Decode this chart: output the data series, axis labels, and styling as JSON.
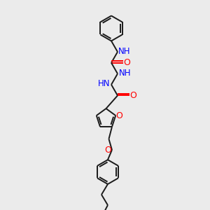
{
  "bg_color": "#ebebeb",
  "bond_color": "#1a1a1a",
  "N_color": "#0000ff",
  "O_color": "#ff0000",
  "lw": 1.4,
  "dbo": 0.055,
  "figsize": [
    3.0,
    3.0
  ],
  "dpi": 100,
  "xlim": [
    0,
    10
  ],
  "ylim": [
    0,
    10
  ]
}
